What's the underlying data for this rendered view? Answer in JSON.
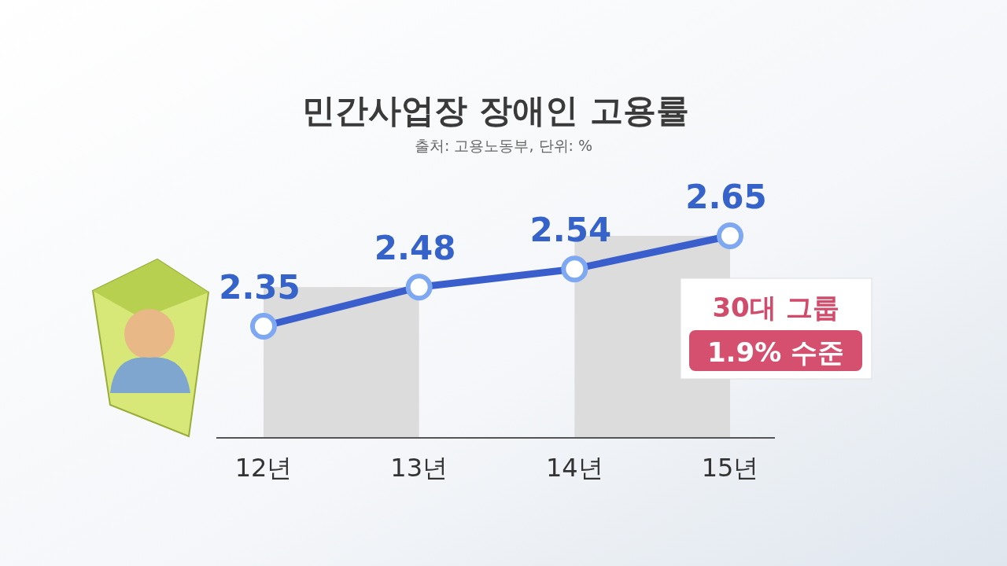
{
  "chart_data": {
    "type": "line",
    "title": "민간사업장 장애인 고용률",
    "subtitle": "출처: 고용노동부, 단위: %",
    "categories": [
      "12년",
      "13년",
      "14년",
      "15년"
    ],
    "series": [
      {
        "color": "#3a5fcd",
        "values": [
          2.35,
          2.48,
          2.54,
          2.65
        ]
      }
    ],
    "data_labels": true,
    "marker": "circle",
    "line_style": "solid",
    "bands": [
      {
        "axis": "x",
        "from": "12년",
        "to": "13년",
        "color": "#dcdcdc"
      },
      {
        "axis": "x",
        "from": "14년",
        "to": "15년",
        "color": "#dcdcdc"
      }
    ],
    "annotations": [
      "30대 그룹",
      "1.9% 수준"
    ]
  }
}
